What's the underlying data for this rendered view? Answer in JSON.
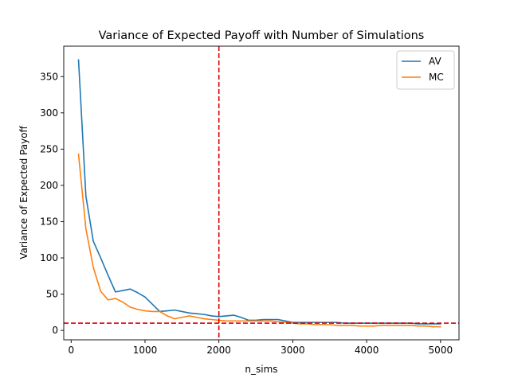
{
  "chart_data": {
    "type": "line",
    "title": "Variance of Expected Payoff with Number of Simulations",
    "xlabel": "n_sims",
    "ylabel": "Variance of Expected Payoff",
    "xlim": [
      -100,
      5250
    ],
    "ylim": [
      -13,
      392
    ],
    "xticks": [
      0,
      1000,
      2000,
      3000,
      4000,
      5000
    ],
    "yticks": [
      0,
      50,
      100,
      150,
      200,
      250,
      300,
      350
    ],
    "legend": "top-right",
    "grid": false,
    "x": [
      100,
      200,
      300,
      400,
      500,
      600,
      700,
      800,
      900,
      1000,
      1100,
      1200,
      1300,
      1400,
      1500,
      1600,
      1700,
      1800,
      1900,
      2000,
      2100,
      2200,
      2300,
      2400,
      2500,
      2600,
      2700,
      2800,
      2900,
      3000,
      3100,
      3200,
      3300,
      3400,
      3500,
      3600,
      3700,
      3800,
      3900,
      4000,
      4100,
      4200,
      4300,
      4400,
      4500,
      4600,
      4700,
      4800,
      4900,
      5000
    ],
    "series": [
      {
        "name": "AV",
        "color": "#1f77b4",
        "values": [
          373,
          185,
          123,
          100,
          76,
          53,
          55,
          57,
          52,
          46,
          36,
          26,
          27,
          28,
          26,
          24,
          23,
          22,
          20,
          19,
          20,
          21,
          18,
          14,
          14,
          15,
          15,
          15,
          13,
          11,
          11,
          11,
          11,
          11,
          11,
          11,
          10,
          10,
          10,
          10,
          10,
          10,
          10,
          10,
          10,
          10,
          9,
          9,
          9,
          9
        ]
      },
      {
        "name": "MC",
        "color": "#ff7f0e",
        "values": [
          243,
          140,
          87,
          54,
          42,
          44,
          39,
          32,
          29,
          27,
          26,
          26,
          20,
          16,
          18,
          20,
          18,
          16,
          15,
          14,
          13,
          13,
          13,
          13,
          13,
          13,
          13,
          12,
          11,
          10,
          9,
          9,
          8,
          8,
          8,
          7,
          7,
          7,
          6,
          6,
          6,
          7,
          7,
          7,
          7,
          7,
          6,
          6,
          5,
          5
        ]
      }
    ],
    "reference_lines": [
      {
        "orientation": "vertical",
        "value": 2000,
        "color": "#dd0000",
        "style": "dashed"
      },
      {
        "orientation": "horizontal",
        "value": 10,
        "color": "#dd0000",
        "style": "dashed"
      }
    ]
  }
}
